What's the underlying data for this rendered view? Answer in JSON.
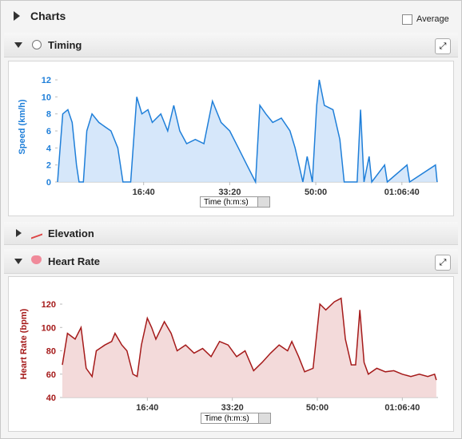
{
  "header": {
    "title": "Charts",
    "checkbox_label": "Average"
  },
  "panels": [
    {
      "title": "Timing"
    },
    {
      "title": "Elevation"
    },
    {
      "title": "Heart Rate"
    }
  ],
  "chart_data": [
    {
      "type": "area",
      "ylabel": "Speed (km/h)",
      "xlabel": "Time (h:m:s)",
      "color": "#1f7fd9",
      "fill": "#cfe3f9",
      "x": [
        0,
        30,
        60,
        120,
        170,
        220,
        250,
        300,
        340,
        400,
        480,
        550,
        620,
        700,
        760,
        850,
        920,
        980,
        1050,
        1100,
        1200,
        1280,
        1350,
        1420,
        1500,
        1600,
        1700,
        1800,
        1900,
        2000,
        2100,
        2200,
        2300,
        2350,
        2420,
        2500,
        2600,
        2700,
        2760,
        2850,
        2900,
        2960,
        3010,
        3040,
        3100,
        3200,
        3280,
        3330,
        3480,
        3520,
        3560,
        3620,
        3650,
        3800,
        3830,
        4060,
        4090,
        4390,
        4410
      ],
      "values": [
        0,
        4,
        8,
        8.5,
        7,
        2,
        0,
        0,
        6,
        8,
        7,
        6.5,
        6,
        4,
        0,
        0,
        10,
        8,
        8.5,
        7,
        8,
        6,
        9,
        6,
        4.5,
        5,
        4.5,
        9.5,
        7,
        6,
        4,
        2,
        0,
        9,
        8,
        7,
        7.5,
        6,
        4,
        0,
        3,
        0,
        9,
        12,
        9,
        8.5,
        5,
        0,
        0,
        8.5,
        0,
        3,
        0,
        2,
        0,
        2,
        0,
        2,
        0
      ],
      "xlim": [
        0,
        4420
      ],
      "ylim": [
        0,
        12.8
      ],
      "yticks": [
        0,
        2,
        4,
        6,
        8,
        10,
        12
      ],
      "xticks": [
        {
          "value": 1000,
          "label": "16:40"
        },
        {
          "value": 2000,
          "label": "33:20"
        },
        {
          "value": 3000,
          "label": "50:00"
        },
        {
          "value": 4000,
          "label": "01:06:40"
        }
      ],
      "grid": false
    },
    {
      "type": "area",
      "ylabel": "Heart Rate (bpm)",
      "xlabel": "Time (h:m:s)",
      "color": "#a51a1a",
      "fill": "#f1d3d3",
      "x": [
        0,
        60,
        150,
        220,
        280,
        350,
        400,
        500,
        580,
        620,
        700,
        760,
        830,
        880,
        930,
        1000,
        1050,
        1100,
        1200,
        1280,
        1350,
        1450,
        1550,
        1650,
        1750,
        1850,
        1950,
        2050,
        2150,
        2250,
        2350,
        2450,
        2550,
        2650,
        2700,
        2780,
        2850,
        2950,
        3030,
        3100,
        3200,
        3280,
        3330,
        3400,
        3450,
        3500,
        3550,
        3600,
        3700,
        3800,
        3900,
        4000,
        4100,
        4200,
        4300,
        4380,
        4400
      ],
      "values": [
        68,
        95,
        90,
        100,
        65,
        58,
        80,
        85,
        88,
        95,
        85,
        80,
        60,
        58,
        85,
        108,
        100,
        90,
        105,
        95,
        80,
        85,
        78,
        82,
        75,
        88,
        85,
        75,
        80,
        63,
        70,
        78,
        85,
        80,
        88,
        75,
        62,
        65,
        120,
        115,
        122,
        125,
        90,
        68,
        68,
        115,
        70,
        60,
        65,
        62,
        63,
        60,
        58,
        60,
        58,
        60,
        55
      ],
      "xlim": [
        0,
        4420
      ],
      "ylim": [
        40,
        130
      ],
      "yticks": [
        40,
        60,
        80,
        100,
        120
      ],
      "xticks": [
        {
          "value": 1000,
          "label": "16:40"
        },
        {
          "value": 2000,
          "label": "33:20"
        },
        {
          "value": 3000,
          "label": "50:00"
        },
        {
          "value": 4000,
          "label": "01:06:40"
        }
      ],
      "grid": false
    }
  ]
}
